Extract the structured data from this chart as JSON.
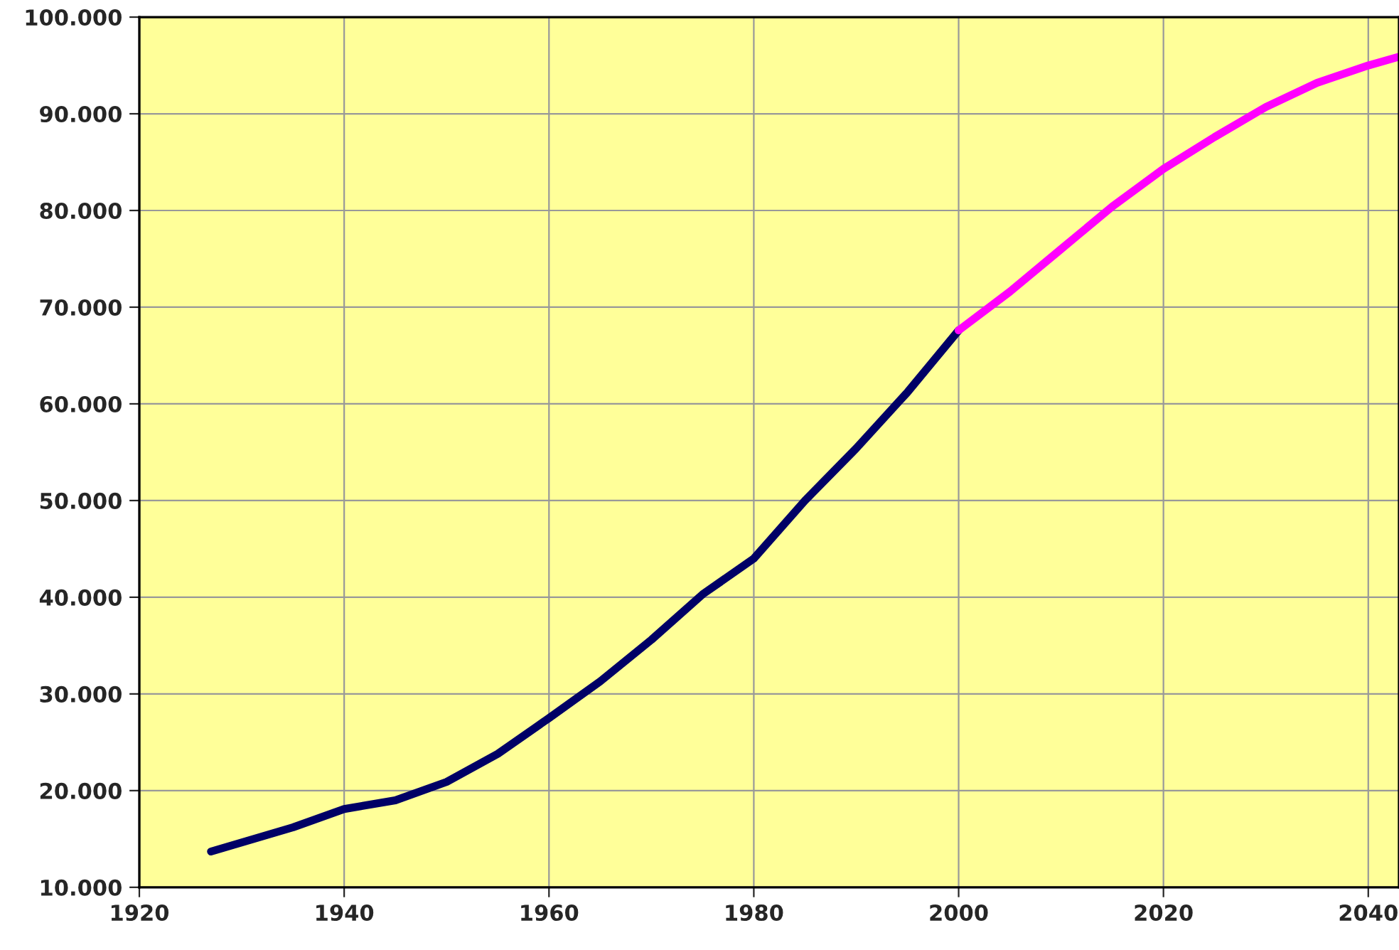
{
  "chart_data": {
    "type": "line",
    "series": [
      {
        "color": "#000066",
        "x": [
          1927,
          1935,
          1940,
          1945,
          1950,
          1955,
          1960,
          1965,
          1970,
          1975,
          1980,
          1985,
          1990,
          1995,
          2000
        ],
        "values": [
          13700,
          16200,
          18100,
          19000,
          20900,
          23800,
          27500,
          31300,
          35600,
          40300,
          44000,
          50000,
          55400,
          61200,
          67600
        ]
      },
      {
        "color": "#ff00ff",
        "x": [
          2000,
          2005,
          2010,
          2015,
          2020,
          2025,
          2030,
          2035,
          2040,
          2043
        ],
        "values": [
          67600,
          71600,
          76000,
          80400,
          84300,
          87600,
          90700,
          93200,
          95000,
          95900
        ]
      }
    ],
    "xlim": [
      1920,
      2043
    ],
    "xticks": [
      1920,
      1940,
      1960,
      1980,
      2000,
      2020,
      2040
    ],
    "ylim": [
      10000,
      100000
    ],
    "yticks": [
      {
        "value": 10000,
        "label": "10.000"
      },
      {
        "value": 20000,
        "label": "20.000"
      },
      {
        "value": 30000,
        "label": "30.000"
      },
      {
        "value": 40000,
        "label": "40.000"
      },
      {
        "value": 50000,
        "label": "50.000"
      },
      {
        "value": 60000,
        "label": "60.000"
      },
      {
        "value": 70000,
        "label": "70.000"
      },
      {
        "value": 80000,
        "label": "80.000"
      },
      {
        "value": 90000,
        "label": "90.000"
      },
      {
        "value": 100000,
        "label": "100.000"
      }
    ],
    "grid": true,
    "legend": false,
    "marker": "none",
    "line_style": "solid"
  }
}
